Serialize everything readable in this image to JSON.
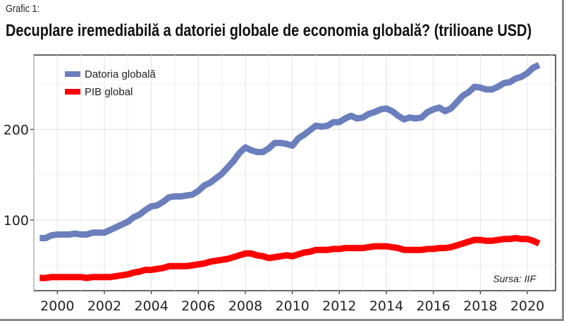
{
  "header": {
    "kicker": "Grafic 1:",
    "title": "Decuplare iremediabilă  a datoriei globale de economia globală? (trilioane USD)"
  },
  "source": "Sursa: IIF",
  "chart_data": {
    "type": "line",
    "title": "Decuplare iremediabilă  a datoriei globale de economia globală? (trilioane USD)",
    "xlabel": "",
    "ylabel": "",
    "x_ticks": [
      2000,
      2002,
      2004,
      2006,
      2008,
      2010,
      2012,
      2014,
      2016,
      2018,
      2020
    ],
    "x_tick_labels": [
      "2000",
      "2002",
      "2004",
      "2006",
      "2008",
      "2010",
      "2012",
      "2014",
      "2016",
      "2018",
      "2020"
    ],
    "y_ticks": [
      100,
      200
    ],
    "y_tick_labels": [
      "100",
      "200"
    ],
    "xlim": [
      1999,
      2021.2
    ],
    "ylim": [
      22,
      282
    ],
    "grid": true,
    "legend_position": "top-left",
    "x": [
      1999.25,
      1999.5,
      1999.75,
      2000.0,
      2000.25,
      2000.5,
      2000.75,
      2001.0,
      2001.25,
      2001.5,
      2001.75,
      2002.0,
      2002.25,
      2002.5,
      2002.75,
      2003.0,
      2003.25,
      2003.5,
      2003.75,
      2004.0,
      2004.25,
      2004.5,
      2004.75,
      2005.0,
      2005.25,
      2005.5,
      2005.75,
      2006.0,
      2006.25,
      2006.5,
      2006.75,
      2007.0,
      2007.25,
      2007.5,
      2007.75,
      2008.0,
      2008.25,
      2008.5,
      2008.75,
      2009.0,
      2009.25,
      2009.5,
      2009.75,
      2010.0,
      2010.25,
      2010.5,
      2010.75,
      2011.0,
      2011.25,
      2011.5,
      2011.75,
      2012.0,
      2012.25,
      2012.5,
      2012.75,
      2013.0,
      2013.25,
      2013.5,
      2013.75,
      2014.0,
      2014.25,
      2014.5,
      2014.75,
      2015.0,
      2015.25,
      2015.5,
      2015.75,
      2016.0,
      2016.25,
      2016.5,
      2016.75,
      2017.0,
      2017.25,
      2017.5,
      2017.75,
      2018.0,
      2018.25,
      2018.5,
      2018.75,
      2019.0,
      2019.25,
      2019.5,
      2019.75,
      2020.0,
      2020.25,
      2020.5
    ],
    "series": [
      {
        "name": "Datoria globală",
        "color": "#6b7fbd",
        "values": [
          80,
          80,
          83,
          84,
          84,
          84,
          85,
          84,
          84,
          86,
          86,
          86,
          89,
          92,
          95,
          98,
          103,
          106,
          111,
          115,
          116,
          120,
          125,
          126,
          126,
          127,
          128,
          132,
          138,
          141,
          146,
          151,
          158,
          165,
          174,
          180,
          177,
          175,
          175,
          179,
          185,
          185,
          184,
          182,
          190,
          194,
          199,
          204,
          203,
          204,
          208,
          208,
          212,
          215,
          212,
          213,
          217,
          219,
          222,
          223,
          220,
          215,
          211,
          213,
          212,
          213,
          219,
          222,
          224,
          220,
          223,
          230,
          237,
          241,
          247,
          246,
          244,
          244,
          247,
          251,
          252,
          256,
          258,
          262,
          268,
          271
        ]
      },
      {
        "name": "PIB global",
        "color": "#ff0000",
        "values": [
          36,
          36,
          37,
          37,
          37,
          37,
          37,
          37,
          36,
          37,
          37,
          37,
          37,
          38,
          39,
          40,
          42,
          43,
          45,
          45,
          46,
          47,
          49,
          49,
          49,
          49,
          50,
          51,
          52,
          54,
          55,
          56,
          57,
          59,
          61,
          63,
          63,
          61,
          60,
          58,
          59,
          60,
          61,
          60,
          62,
          64,
          65,
          67,
          67,
          67,
          68,
          68,
          69,
          69,
          69,
          69,
          70,
          71,
          71,
          71,
          70,
          69,
          67,
          67,
          67,
          67,
          68,
          68,
          69,
          69,
          70,
          72,
          74,
          76,
          78,
          78,
          77,
          77,
          78,
          79,
          79,
          80,
          79,
          79,
          77,
          74
        ]
      }
    ]
  }
}
